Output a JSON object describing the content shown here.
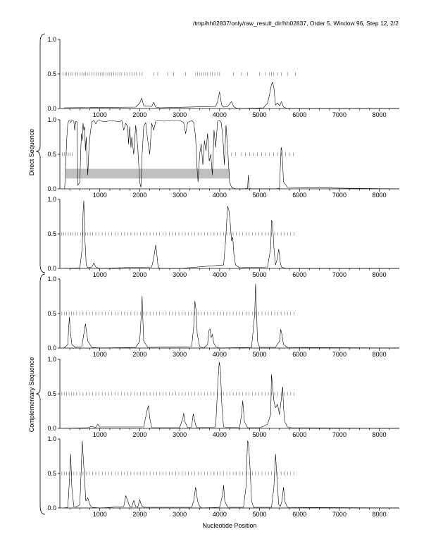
{
  "header": {
    "title": "/tmp/hh02837/only/raw_result_dir/hh02837, Order 5, Window 96, Step 12, 2/2"
  },
  "labels": {
    "xlabel": "Nucleotide Position",
    "direct_group": "Direct Sequence",
    "complementary_group": "Complementary Sequence"
  },
  "colors": {
    "line": "#000000",
    "codon_ticks": "#777777",
    "highlight_bar": "#bfbfbf"
  },
  "chart_data": [
    {
      "type": "line",
      "group": "direct",
      "xlim": [
        0,
        8500
      ],
      "ylim": [
        0,
        1
      ],
      "xticks": [
        "1000",
        "2000",
        "3000",
        "4000",
        "5000",
        "6000",
        "7000",
        "8000"
      ],
      "yticks": [
        "0.0",
        "0.5",
        "1.0"
      ],
      "codon_ticks": [
        80,
        130,
        170,
        220,
        280,
        330,
        400,
        450,
        510,
        560,
        600,
        640,
        690,
        730,
        800,
        850,
        910,
        960,
        1010,
        1060,
        1100,
        1150,
        1200,
        1250,
        1300,
        1350,
        1400,
        1450,
        1500,
        1550,
        1620,
        1680,
        1750,
        1810,
        1870,
        1920,
        2000,
        2060,
        2350,
        2450,
        2700,
        2850,
        3150,
        3400,
        3450,
        3500,
        3550,
        3600,
        3650,
        3700,
        3760,
        3820,
        3880,
        3950,
        4000,
        4350,
        4550,
        4700,
        5000,
        5150,
        5250,
        5300,
        5350,
        5450,
        5550,
        5700,
        5900
      ],
      "x": [
        100,
        1900,
        2000,
        2050,
        2100,
        2300,
        2350,
        2400,
        2500,
        3900,
        3950,
        4000,
        4050,
        4100,
        4200,
        4300,
        4350,
        4400,
        4500,
        5100,
        5200,
        5250,
        5300,
        5330,
        5360,
        5400,
        5450,
        5500,
        5550,
        5600,
        5700,
        8500
      ],
      "y": [
        0.01,
        0.02,
        0.08,
        0.15,
        0.04,
        0.03,
        0.09,
        0.02,
        0.01,
        0.03,
        0.1,
        0.24,
        0.05,
        0.02,
        0.03,
        0.1,
        0.03,
        0.01,
        0.0,
        0.01,
        0.08,
        0.2,
        0.35,
        0.38,
        0.3,
        0.05,
        0.08,
        0.04,
        0.1,
        0.02,
        0.0,
        0.0
      ]
    },
    {
      "type": "line",
      "group": "direct",
      "xlim": [
        0,
        8500
      ],
      "ylim": [
        0,
        1
      ],
      "xticks": [
        "1000",
        "2000",
        "3000",
        "4000",
        "5000",
        "6000",
        "7000",
        "8000"
      ],
      "yticks": [
        "0.0",
        "0.5",
        "1.0"
      ],
      "highlight_bar": {
        "x": [
          150,
          4250
        ],
        "y": [
          0.15,
          0.29
        ]
      },
      "codon_ticks": [
        60,
        110,
        160,
        210,
        260,
        310,
        4300,
        4400,
        4550,
        4650,
        4750,
        4850,
        4950,
        5050,
        5150,
        5250,
        5350,
        5450,
        5550,
        5650,
        5750,
        5850
      ],
      "x": [
        120,
        150,
        170,
        200,
        230,
        250,
        270,
        300,
        350,
        370,
        400,
        430,
        450,
        500,
        520,
        540,
        560,
        580,
        600,
        620,
        640,
        660,
        680,
        700,
        730,
        760,
        800,
        850,
        900,
        950,
        1000,
        1100,
        1200,
        1300,
        1400,
        1500,
        1550,
        1600,
        1650,
        1700,
        1720,
        1750,
        1780,
        1800,
        1850,
        1900,
        1950,
        2000,
        2030,
        2060,
        2100,
        2150,
        2200,
        2250,
        2300,
        2350,
        2400,
        2500,
        2600,
        2800,
        3000,
        3100,
        3150,
        3200,
        3300,
        3350,
        3400,
        3430,
        3460,
        3500,
        3540,
        3580,
        3620,
        3660,
        3700,
        3740,
        3780,
        3820,
        3860,
        3900,
        3950,
        4000,
        4040,
        4080,
        4120,
        4160,
        4200,
        4250,
        4300,
        4400,
        4600,
        4700,
        4720,
        4740,
        4800,
        5000,
        5400,
        5500,
        5520,
        5540,
        5560,
        5580,
        5600,
        5700,
        8500
      ],
      "y": [
        0.0,
        0.4,
        0.7,
        0.95,
        0.99,
        0.99,
        0.96,
        0.99,
        0.98,
        0.85,
        0.98,
        0.97,
        0.05,
        0.1,
        0.5,
        0.8,
        0.7,
        0.95,
        0.85,
        0.9,
        0.55,
        0.75,
        0.4,
        0.2,
        0.6,
        0.8,
        0.97,
        0.99,
        0.94,
        0.99,
        0.99,
        0.97,
        0.98,
        0.99,
        0.98,
        0.97,
        0.99,
        0.85,
        0.95,
        0.9,
        0.65,
        0.9,
        0.6,
        0.75,
        0.5,
        0.92,
        0.6,
        0.1,
        0.02,
        0.5,
        0.9,
        0.96,
        0.7,
        0.5,
        0.95,
        0.85,
        0.98,
        0.99,
        0.98,
        0.99,
        0.99,
        0.96,
        0.8,
        0.96,
        0.99,
        0.96,
        0.75,
        0.35,
        0.1,
        0.5,
        0.65,
        0.35,
        0.7,
        0.55,
        0.8,
        0.4,
        0.5,
        0.2,
        0.85,
        0.6,
        0.98,
        0.99,
        0.96,
        0.75,
        0.35,
        0.92,
        0.6,
        0.1,
        0.02,
        0.0,
        0.0,
        0.01,
        0.2,
        0.01,
        0.0,
        0.0,
        0.0,
        0.01,
        0.3,
        0.6,
        0.55,
        0.35,
        0.1,
        0.02,
        0.0
      ]
    },
    {
      "type": "line",
      "group": "direct",
      "xlim": [
        0,
        8500
      ],
      "ylim": [
        0,
        1
      ],
      "xticks": [
        "1000",
        "2000",
        "3000",
        "4000",
        "5000",
        "6000",
        "7000",
        "8000"
      ],
      "yticks": [
        "0.0",
        "0.5",
        "1.0"
      ],
      "codon_ticks": [
        50,
        100,
        150,
        210,
        270,
        330,
        390,
        450,
        520,
        580,
        640,
        700,
        760,
        820,
        900,
        980,
        1060,
        1140,
        1220,
        1300,
        1380,
        1460,
        1540,
        1620,
        1700,
        1780,
        1860,
        1940,
        2020,
        2100,
        2180,
        2260,
        2340,
        2420,
        2500,
        2580,
        2660,
        2740,
        2820,
        2900,
        2980,
        3060,
        3140,
        3220,
        3300,
        3380,
        3460,
        3540,
        3620,
        3700,
        3780,
        3860,
        3940,
        4020,
        4100,
        4180,
        4260,
        4340,
        4420,
        4500,
        4580,
        4660,
        4740,
        4820,
        4900,
        4980,
        5060,
        5140,
        5220,
        5300,
        5380,
        5460,
        5540,
        5620,
        5700,
        5780,
        5860
      ],
      "x": [
        100,
        500,
        560,
        580,
        600,
        620,
        660,
        700,
        800,
        850,
        900,
        1000,
        1500,
        2300,
        2350,
        2400,
        2430,
        2460,
        2500,
        3000,
        4100,
        4150,
        4200,
        4230,
        4260,
        4300,
        4330,
        4360,
        4400,
        4500,
        5200,
        5280,
        5300,
        5330,
        5360,
        5400,
        5450,
        5480,
        5500,
        5520,
        5550,
        5600,
        5700,
        8500
      ],
      "y": [
        0.0,
        0.01,
        0.3,
        0.8,
        0.98,
        0.5,
        0.05,
        0.01,
        0.02,
        0.08,
        0.02,
        0.0,
        0.01,
        0.02,
        0.15,
        0.34,
        0.2,
        0.02,
        0.0,
        0.0,
        0.05,
        0.4,
        0.9,
        0.85,
        0.7,
        0.4,
        0.45,
        0.2,
        0.05,
        0.01,
        0.02,
        0.3,
        0.7,
        0.65,
        0.3,
        0.05,
        0.15,
        0.28,
        0.2,
        0.08,
        0.02,
        0.01,
        0.0,
        0.0
      ]
    },
    {
      "type": "line",
      "group": "complementary",
      "xlim": [
        0,
        8500
      ],
      "ylim": [
        0,
        1
      ],
      "xticks": [
        "1000",
        "2000",
        "3000",
        "4000",
        "5000",
        "6000",
        "7000",
        "8000"
      ],
      "yticks": [
        "0.0",
        "0.5",
        "1.0"
      ],
      "codon_ticks": [
        50,
        110,
        170,
        230,
        290,
        350,
        420,
        500,
        580,
        660,
        740,
        820,
        900,
        980,
        1060,
        1140,
        1220,
        1300,
        1380,
        1460,
        1540,
        1620,
        1700,
        1780,
        1860,
        1940,
        2020,
        2100,
        2180,
        2260,
        2340,
        2420,
        2500,
        2580,
        2660,
        2740,
        2820,
        2900,
        2980,
        3060,
        3140,
        3220,
        3300,
        3380,
        3460,
        3540,
        3620,
        3700,
        3780,
        3860,
        3940,
        4020,
        4100,
        4180,
        4260,
        4340,
        4420,
        4500,
        4580,
        4660,
        4740,
        4820,
        4900,
        4980,
        5060,
        5140,
        5220,
        5300,
        5380,
        5460,
        5540,
        5620,
        5700,
        5780,
        5860
      ],
      "x": [
        100,
        200,
        220,
        240,
        260,
        280,
        300,
        400,
        550,
        600,
        640,
        700,
        800,
        1000,
        1900,
        2000,
        2040,
        2060,
        2080,
        2100,
        2200,
        3300,
        3350,
        3380,
        3410,
        3440,
        3500,
        3600,
        3700,
        3730,
        3760,
        3790,
        3820,
        3850,
        3900,
        4000,
        4800,
        4880,
        4900,
        4920,
        4950,
        5000,
        5400,
        5500,
        5530,
        5560,
        5600,
        5700,
        8500
      ],
      "y": [
        0.0,
        0.05,
        0.3,
        0.45,
        0.25,
        0.15,
        0.05,
        0.01,
        0.02,
        0.2,
        0.35,
        0.1,
        0.01,
        0.0,
        0.01,
        0.1,
        0.5,
        0.75,
        0.4,
        0.1,
        0.01,
        0.02,
        0.3,
        0.68,
        0.55,
        0.2,
        0.02,
        0.0,
        0.05,
        0.25,
        0.28,
        0.15,
        0.2,
        0.08,
        0.02,
        0.0,
        0.01,
        0.5,
        0.93,
        0.6,
        0.1,
        0.01,
        0.01,
        0.1,
        0.27,
        0.2,
        0.05,
        0.01,
        0.0
      ]
    },
    {
      "type": "line",
      "group": "complementary",
      "xlim": [
        0,
        8500
      ],
      "ylim": [
        0,
        1
      ],
      "xticks": [
        "1000",
        "2000",
        "3000",
        "4000",
        "5000",
        "6000",
        "7000",
        "8000"
      ],
      "yticks": [
        "0.0",
        "0.5",
        "1.0"
      ],
      "codon_ticks": [
        50,
        110,
        170,
        230,
        290,
        350,
        420,
        500,
        580,
        660,
        740,
        820,
        900,
        980,
        1060,
        1140,
        1220,
        1300,
        1380,
        1460,
        1540,
        1620,
        1700,
        1780,
        1860,
        1940,
        2020,
        2100,
        2180,
        2260,
        2340,
        2420,
        2500,
        2580,
        2660,
        2740,
        2820,
        2900,
        2980,
        3060,
        3140,
        3220,
        3300,
        3380,
        3460,
        3540,
        3620,
        3700,
        3780,
        3860,
        3940,
        4020,
        4100,
        4180,
        4260,
        4340,
        4420,
        4500,
        4580,
        4660,
        4740,
        4820,
        4900,
        4980,
        5060,
        5140,
        5220,
        5300,
        5380,
        5460,
        5540,
        5620,
        5700,
        5780,
        5860
      ],
      "x": [
        100,
        700,
        800,
        900,
        950,
        1000,
        2100,
        2180,
        2220,
        2250,
        2300,
        3000,
        3080,
        3100,
        3130,
        3200,
        3300,
        3340,
        3380,
        3420,
        3900,
        3960,
        3990,
        4020,
        4060,
        4100,
        4500,
        4550,
        4580,
        4620,
        4700,
        5000,
        5100,
        5200,
        5280,
        5300,
        5330,
        5360,
        5400,
        5450,
        5500,
        5550,
        5580,
        5600,
        5630,
        5700,
        5800,
        8500
      ],
      "y": [
        0.0,
        0.01,
        0.03,
        0.01,
        0.06,
        0.02,
        0.02,
        0.25,
        0.33,
        0.15,
        0.01,
        0.01,
        0.15,
        0.22,
        0.1,
        0.01,
        0.02,
        0.21,
        0.1,
        0.01,
        0.02,
        0.7,
        0.96,
        0.85,
        0.3,
        0.02,
        0.01,
        0.2,
        0.4,
        0.1,
        0.01,
        0.01,
        0.03,
        0.06,
        0.2,
        0.78,
        0.6,
        0.4,
        0.3,
        0.35,
        0.2,
        0.45,
        0.6,
        0.3,
        0.1,
        0.02,
        0.01,
        0.0
      ]
    },
    {
      "type": "line",
      "group": "complementary",
      "xlim": [
        0,
        8500
      ],
      "ylim": [
        0,
        1
      ],
      "xticks": [
        "1000",
        "2000",
        "3000",
        "4000",
        "5000",
        "6000",
        "7000",
        "8000"
      ],
      "yticks": [
        "0.0",
        "0.5",
        "1.0"
      ],
      "codon_ticks": [
        50,
        110,
        170,
        230,
        290,
        350,
        420,
        500,
        580,
        660,
        740,
        820,
        900,
        980,
        1060,
        1140,
        1220,
        1300,
        1380,
        1460,
        1540,
        1620,
        1700,
        1780,
        1860,
        1940,
        2020,
        2100,
        2180,
        2260,
        2340,
        2420,
        2500,
        2580,
        2660,
        2740,
        2820,
        2900,
        2980,
        3060,
        3140,
        3220,
        3300,
        3380,
        3460,
        3540,
        3620,
        3700,
        3780,
        3860,
        3940,
        4020,
        4100,
        4180,
        4260,
        4340,
        4420,
        4500,
        4580,
        4660,
        4740,
        4820,
        4900,
        4980,
        5060,
        5140,
        5220,
        5300,
        5380,
        5460,
        5540,
        5620,
        5700,
        5780,
        5860
      ],
      "x": [
        100,
        200,
        240,
        270,
        300,
        350,
        400,
        500,
        530,
        560,
        600,
        650,
        700,
        750,
        800,
        1000,
        1600,
        1650,
        1700,
        1750,
        1800,
        1850,
        1900,
        1950,
        2000,
        2050,
        2100,
        3300,
        3350,
        3400,
        3450,
        3500,
        3550,
        4000,
        4080,
        4100,
        4130,
        4200,
        4600,
        4660,
        4700,
        4720,
        4740,
        4770,
        4800,
        4850,
        5300,
        5360,
        5400,
        5440,
        5480,
        5520,
        5560,
        5600,
        5630,
        5700,
        8500
      ],
      "y": [
        0.0,
        0.01,
        0.4,
        0.78,
        0.3,
        0.02,
        0.01,
        0.05,
        0.5,
        0.97,
        0.6,
        0.1,
        0.15,
        0.05,
        0.01,
        0.0,
        0.02,
        0.18,
        0.1,
        0.02,
        0.01,
        0.11,
        0.02,
        0.01,
        0.12,
        0.03,
        0.01,
        0.01,
        0.1,
        0.3,
        0.1,
        0.02,
        0.0,
        0.01,
        0.2,
        0.33,
        0.1,
        0.01,
        0.01,
        0.3,
        0.97,
        0.95,
        0.8,
        0.5,
        0.1,
        0.01,
        0.01,
        0.3,
        0.78,
        0.4,
        0.05,
        0.02,
        0.1,
        0.3,
        0.1,
        0.01,
        0.0
      ]
    }
  ]
}
